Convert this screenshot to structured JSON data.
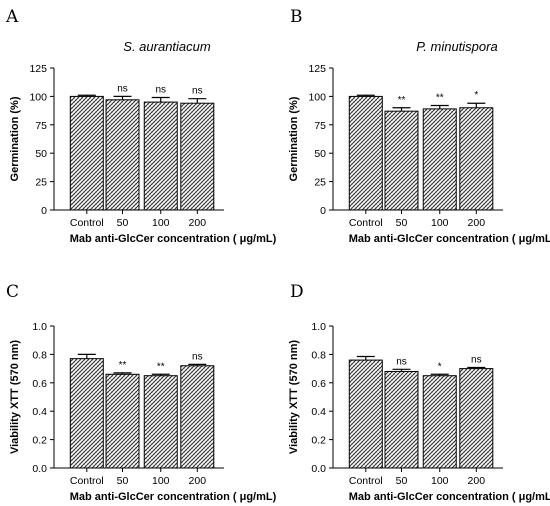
{
  "xlabel_common": "Mab anti-GlcCer concentration ( μg/mL)",
  "chart_data": [
    {
      "type": "bar",
      "panel": "A",
      "title": "S. aurantiacum",
      "xlabel": "Mab anti-GlcCer concentration ( μg/mL)",
      "ylabel": "Germination (%)",
      "categories": [
        "Control",
        "50",
        "100",
        "200"
      ],
      "values": [
        100,
        97,
        95,
        94
      ],
      "errors": [
        1,
        3,
        4,
        4
      ],
      "significance": [
        "",
        "ns",
        "ns",
        "ns"
      ],
      "ylim": [
        0,
        125
      ],
      "yticks": [
        "0",
        "25",
        "50",
        "75",
        "100",
        "125"
      ],
      "ytick_values": [
        0,
        25,
        50,
        75,
        100,
        125
      ]
    },
    {
      "type": "bar",
      "panel": "B",
      "title": "P. minutispora",
      "xlabel": "Mab anti-GlcCer concentration ( μg/mL)",
      "ylabel": "Germination (%)",
      "categories": [
        "Control",
        "50",
        "100",
        "200"
      ],
      "values": [
        100,
        87,
        89,
        90
      ],
      "errors": [
        1,
        3,
        3,
        4
      ],
      "significance": [
        "",
        "**",
        "**",
        "*"
      ],
      "ylim": [
        0,
        125
      ],
      "yticks": [
        "0",
        "25",
        "50",
        "75",
        "100",
        "125"
      ],
      "ytick_values": [
        0,
        25,
        50,
        75,
        100,
        125
      ]
    },
    {
      "type": "bar",
      "panel": "C",
      "title": "",
      "xlabel": "Mab anti-GlcCer concentration ( μg/mL)",
      "ylabel": "Viability XTT (570 nm)",
      "categories": [
        "Control",
        "50",
        "100",
        "200"
      ],
      "values": [
        0.77,
        0.66,
        0.65,
        0.72
      ],
      "errors": [
        0.03,
        0.01,
        0.01,
        0.01
      ],
      "significance": [
        "",
        "**",
        "**",
        "ns"
      ],
      "ylim": [
        0,
        1.0
      ],
      "yticks": [
        "0.0",
        "0.2",
        "0.4",
        "0.6",
        "0.8",
        "1.0"
      ],
      "ytick_values": [
        0,
        0.2,
        0.4,
        0.6,
        0.8,
        1.0
      ]
    },
    {
      "type": "bar",
      "panel": "D",
      "title": "",
      "xlabel": "Mab anti-GlcCer concentration ( μg/mL)",
      "ylabel": "Viability XTT (570 nm)",
      "categories": [
        "Control",
        "50",
        "100",
        "200"
      ],
      "values": [
        0.76,
        0.68,
        0.65,
        0.7
      ],
      "errors": [
        0.025,
        0.015,
        0.01,
        0.008
      ],
      "significance": [
        "",
        "ns",
        "*",
        "ns"
      ],
      "ylim": [
        0,
        1.0
      ],
      "yticks": [
        "0.0",
        "0.2",
        "0.4",
        "0.6",
        "0.8",
        "1.0"
      ],
      "ytick_values": [
        0,
        0.2,
        0.4,
        0.6,
        0.8,
        1.0
      ]
    }
  ]
}
